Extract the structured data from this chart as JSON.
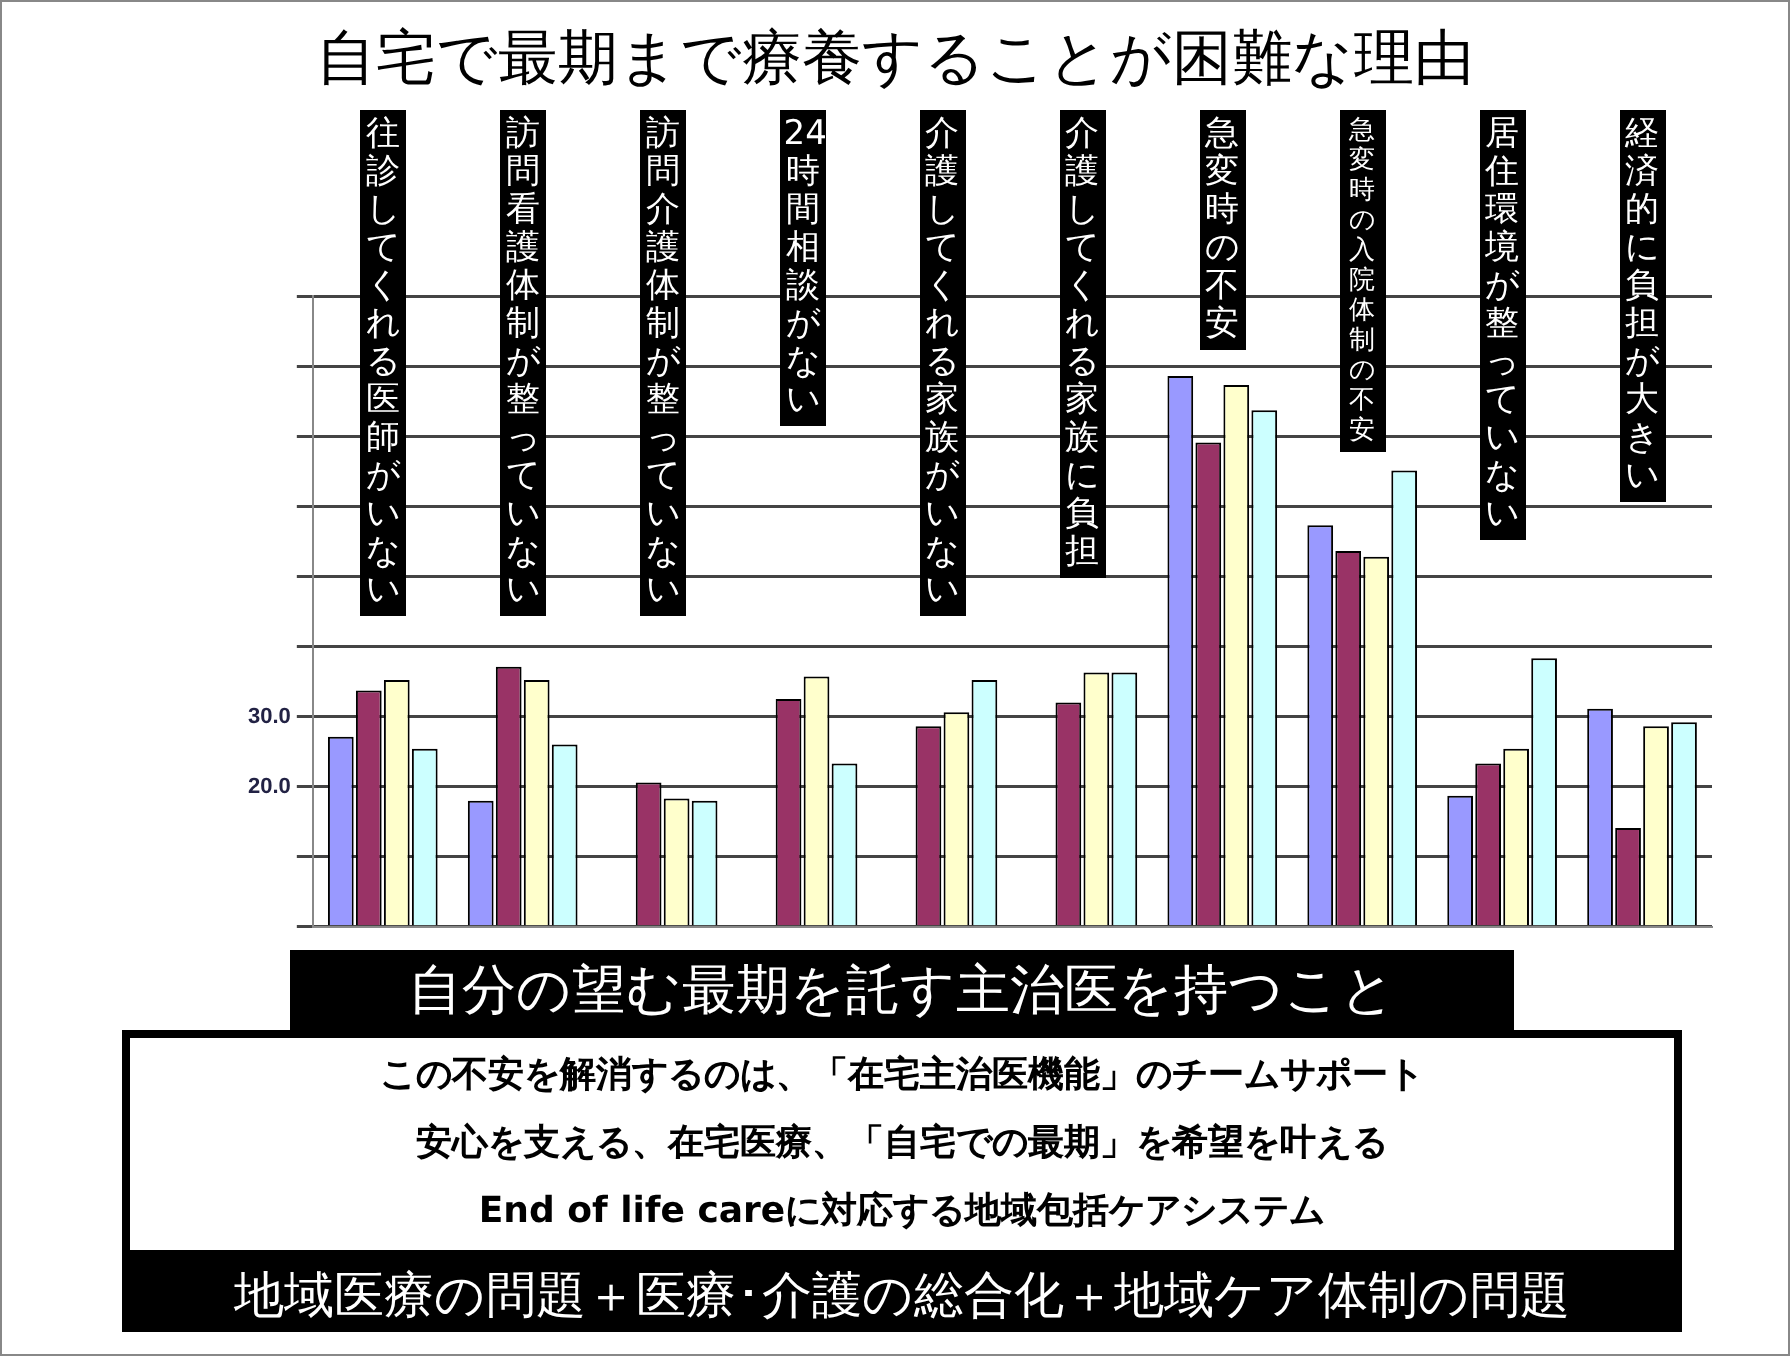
{
  "chart_data": {
    "type": "bar",
    "title": "自宅で最期まで療養することが困難な理由",
    "categories": [
      "往診してくれる医師がいない",
      "訪問看護体制が整っていない",
      "訪問介護体制が整っていない",
      "24時間相談がない",
      "介護してくれる家族がいない",
      "介護してくれる家族に負担",
      "急変時の不安",
      "急変時の入院体制の不安",
      "居住環境が整っていない",
      "経済的に負担が大きい"
    ],
    "series": [
      {
        "color": "#9999ff",
        "values": [
          27.1,
          18,
          null,
          null,
          null,
          null,
          78.6,
          57.3,
          18.7,
          31.1
        ]
      },
      {
        "color": "#993366",
        "values": [
          33.7,
          37.1,
          20.6,
          32.5,
          28.6,
          32.0,
          69.1,
          53.6,
          23.3,
          14.1
        ]
      },
      {
        "color": "#ffffcc",
        "values": [
          35.2,
          35.2,
          18.3,
          35.7,
          30.6,
          36.3,
          77.3,
          52.8,
          25.4,
          28.6
        ]
      },
      {
        "color": "#ccffff",
        "values": [
          25.4,
          26.0,
          18,
          23.3,
          35.2,
          36.3,
          73.7,
          65.1,
          38.3,
          29.2
        ]
      }
    ],
    "ylim": [
      0,
      90
    ],
    "yticks": [
      {
        "value": 0,
        "label": null
      },
      {
        "value": 10,
        "label": null
      },
      {
        "value": 20,
        "label": "20.0"
      },
      {
        "value": 30,
        "label": "30.0"
      },
      {
        "value": 40,
        "label": null
      },
      {
        "value": 50,
        "label": null
      },
      {
        "value": 60,
        "label": null
      },
      {
        "value": 70,
        "label": null
      },
      {
        "value": 80,
        "label": null
      },
      {
        "value": 90,
        "label": null
      }
    ],
    "grid": "y",
    "annotations": [
      "自分の望む最期を託す主治医を持つこと",
      "この不安を解消するのは、「在宅主治医機能」のチームサポート",
      "安心を支える、在宅医療、「自宅での最期」を希望を叶える",
      "End of life careに対応する地域包括ケアシステム",
      "地域医療の問題＋医療･介護の総合化＋地域ケア体制の問題"
    ]
  }
}
